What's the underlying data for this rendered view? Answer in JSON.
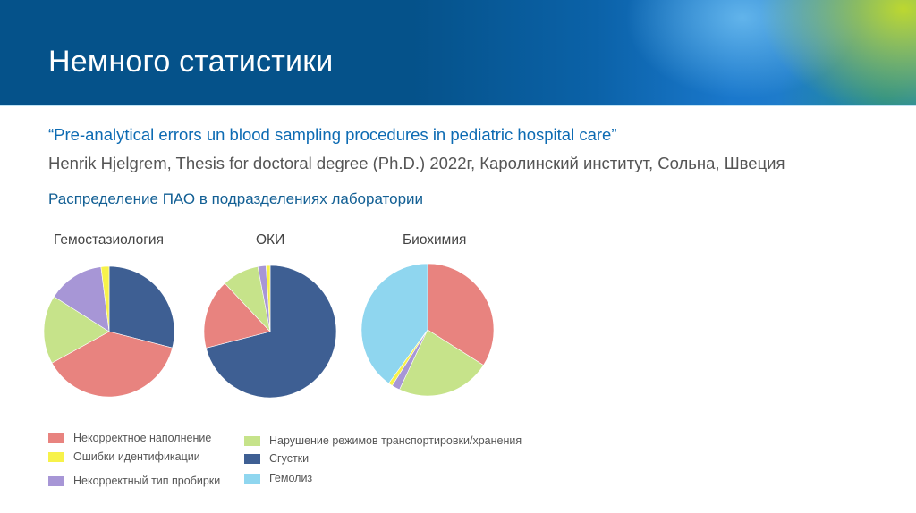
{
  "header": {
    "title": "Немного статистики"
  },
  "source": {
    "quote": "“Pre-analytical errors un blood sampling procedures in pediatric hospital care”",
    "citation": "Henrik Hjelgrem, Thesis for doctoral degree (Ph.D.) 2022г, Каролинский институт, Сольна, Швеция"
  },
  "subtitle": "Распределение ПАО в подразделениях лаборатории",
  "colors": {
    "incorrect_filling": "#e8837f",
    "identification_errors": "#f7f24a",
    "wrong_tube": "#a796d6",
    "transport_storage": "#c6e38a",
    "clots": "#3e5f93",
    "hemolysis": "#8fd6ef"
  },
  "legend": [
    {
      "key": "incorrect_filling",
      "label": "Некорректное наполнение",
      "color": "#e8837f"
    },
    {
      "key": "identification_errors",
      "label": "Ошибки идентификации",
      "color": "#f7f24a"
    },
    {
      "key": "wrong_tube",
      "label": "Некорректный тип пробирки",
      "color": "#a796d6"
    },
    {
      "key": "transport_storage",
      "label": "Нарушение режимов транспортировки/хранения",
      "color": "#c6e38a"
    },
    {
      "key": "clots",
      "label": "Сгустки",
      "color": "#3e5f93"
    },
    {
      "key": "hemolysis",
      "label": "Гемолиз",
      "color": "#8fd6ef"
    }
  ],
  "chart_data": [
    {
      "type": "pie",
      "title": "Гемостазиология",
      "categories": [
        "Сгустки",
        "Некорректное наполнение",
        "Нарушение режимов транспортировки/хранения",
        "Некорректный тип пробирки",
        "Ошибки идентификации"
      ],
      "values": [
        29,
        38,
        17,
        14,
        2
      ],
      "colors": [
        "#3e5f93",
        "#e8837f",
        "#c6e38a",
        "#a796d6",
        "#f7f24a"
      ]
    },
    {
      "type": "pie",
      "title": "ОКИ",
      "categories": [
        "Сгустки",
        "Некорректное наполнение",
        "Нарушение режимов транспортировки/хранения",
        "Некорректный тип пробирки",
        "Ошибки идентификации"
      ],
      "values": [
        71,
        17,
        9,
        2,
        1
      ],
      "colors": [
        "#3e5f93",
        "#e8837f",
        "#c6e38a",
        "#a796d6",
        "#f7f24a"
      ]
    },
    {
      "type": "pie",
      "title": "Биохимия",
      "categories": [
        "Некорректное наполнение",
        "Нарушение режимов транспортировки/хранения",
        "Некорректный тип пробирки",
        "Ошибки идентификации",
        "Гемолиз"
      ],
      "values": [
        34,
        23,
        2,
        1,
        40
      ],
      "colors": [
        "#e8837f",
        "#c6e38a",
        "#a796d6",
        "#f7f24a",
        "#8fd6ef"
      ]
    }
  ]
}
